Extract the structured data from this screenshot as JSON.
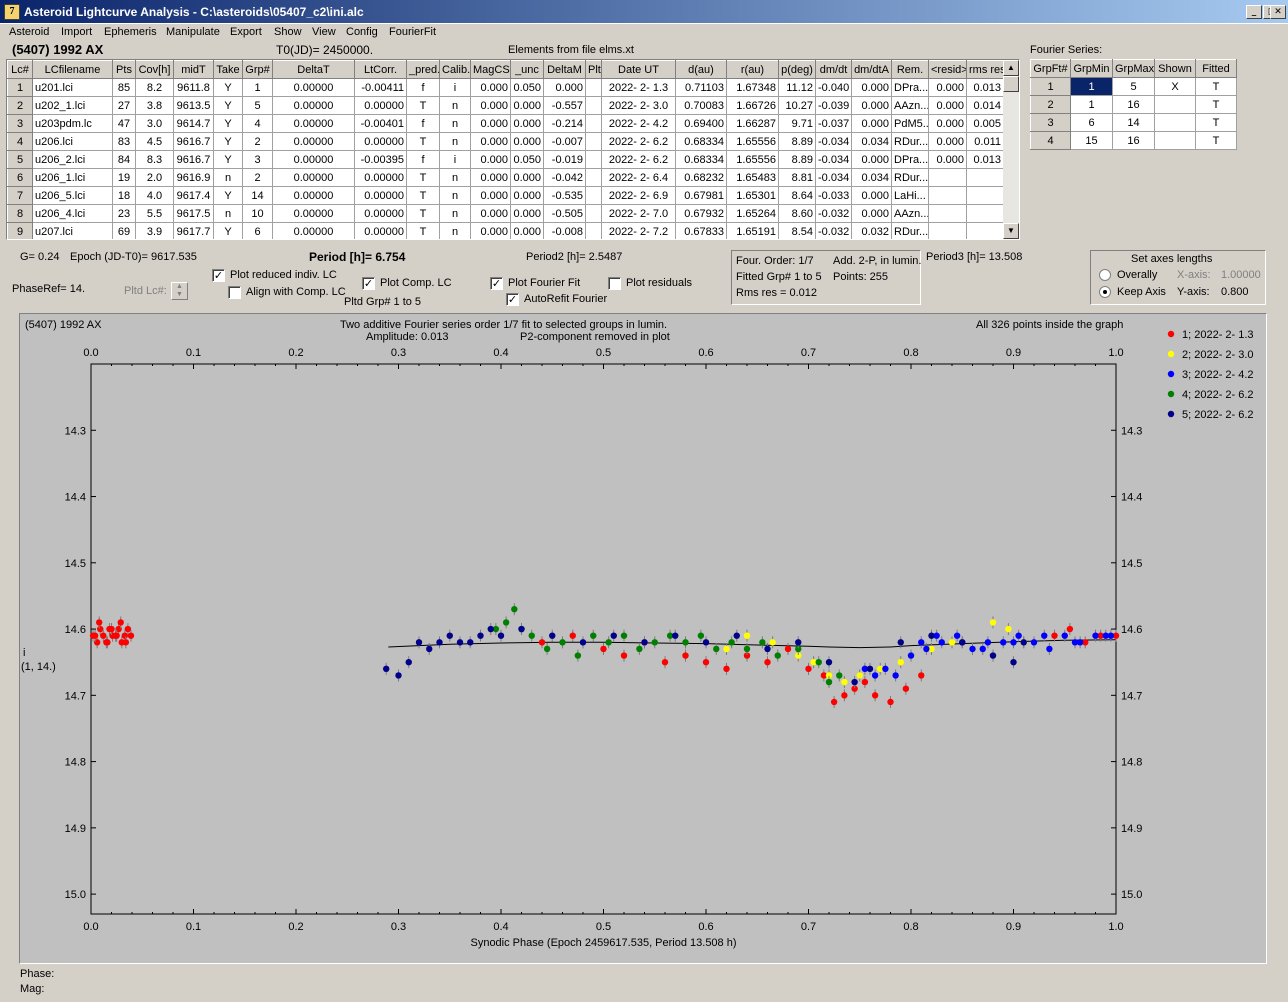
{
  "window": {
    "title": "Asteroid Lightcurve Analysis - C:\\asteroids\\05407_c2\\ini.alc",
    "icon_letter": "7"
  },
  "menu": [
    "Asteroid",
    "Import",
    "Ephemeris",
    "Manipulate",
    "Export",
    "Show",
    "View",
    "Config",
    "FourierFit"
  ],
  "header": {
    "object": "(5407) 1992 AX",
    "t0": "T0(JD)= 2450000.",
    "elements": "Elements from file elms.xt",
    "fourier_series_label": "Fourier Series:"
  },
  "lc_table": {
    "columns": [
      "Lc#",
      "LCfilename",
      "Pts",
      "Cov[h]",
      "midT",
      "Take",
      "Grp#",
      "DeltaT",
      "LtCorr.",
      "_pred.",
      "Calib.",
      "MagCS",
      "_unc",
      "DeltaM",
      "Plt",
      "Date UT",
      "d(au)",
      "r(au)",
      "p(deg)",
      "dm/dt",
      "dm/dtA",
      "Rem.",
      "<resid>",
      "rms res"
    ],
    "rows": [
      [
        "1",
        "u201.lci",
        "85",
        "8.2",
        "9611.8",
        "Y",
        "1",
        "0.00000",
        "-0.00411",
        "f",
        "i",
        "0.000",
        "0.050",
        "0.000",
        "",
        "2022- 2- 1.3",
        "0.71103",
        "1.67348",
        "11.12",
        "-0.040",
        "0.000",
        "DPra...",
        "0.000",
        "0.013"
      ],
      [
        "2",
        "u202_1.lci",
        "27",
        "3.8",
        "9613.5",
        "Y",
        "5",
        "0.00000",
        "0.00000",
        "T",
        "n",
        "0.000",
        "0.000",
        "-0.557",
        "",
        "2022- 2- 3.0",
        "0.70083",
        "1.66726",
        "10.27",
        "-0.039",
        "0.000",
        "AAzn...",
        "0.000",
        "0.014"
      ],
      [
        "3",
        "u203pdm.lc",
        "47",
        "3.0",
        "9614.7",
        "Y",
        "4",
        "0.00000",
        "-0.00401",
        "f",
        "n",
        "0.000",
        "0.000",
        "-0.214",
        "",
        "2022- 2- 4.2",
        "0.69400",
        "1.66287",
        "9.71",
        "-0.037",
        "0.000",
        "PdM5...",
        "0.000",
        "0.005"
      ],
      [
        "4",
        "u206.lci",
        "83",
        "4.5",
        "9616.7",
        "Y",
        "2",
        "0.00000",
        "0.00000",
        "T",
        "n",
        "0.000",
        "0.000",
        "-0.007",
        "",
        "2022- 2- 6.2",
        "0.68334",
        "1.65556",
        "8.89",
        "-0.034",
        "0.034",
        "RDur...",
        "0.000",
        "0.011"
      ],
      [
        "5",
        "u206_2.lci",
        "84",
        "8.3",
        "9616.7",
        "Y",
        "3",
        "0.00000",
        "-0.00395",
        "f",
        "i",
        "0.000",
        "0.050",
        "-0.019",
        "",
        "2022- 2- 6.2",
        "0.68334",
        "1.65556",
        "8.89",
        "-0.034",
        "0.000",
        "DPra...",
        "0.000",
        "0.013"
      ],
      [
        "6",
        "u206_1.lci",
        "19",
        "2.0",
        "9616.9",
        "n",
        "2",
        "0.00000",
        "0.00000",
        "T",
        "n",
        "0.000",
        "0.000",
        "-0.042",
        "",
        "2022- 2- 6.4",
        "0.68232",
        "1.65483",
        "8.81",
        "-0.034",
        "0.034",
        "RDur...",
        "",
        ""
      ],
      [
        "7",
        "u206_5.lci",
        "18",
        "4.0",
        "9617.4",
        "Y",
        "14",
        "0.00000",
        "0.00000",
        "T",
        "n",
        "0.000",
        "0.000",
        "-0.535",
        "",
        "2022- 2- 6.9",
        "0.67981",
        "1.65301",
        "8.64",
        "-0.033",
        "0.000",
        "LaHi...",
        "",
        ""
      ],
      [
        "8",
        "u206_4.lci",
        "23",
        "5.5",
        "9617.5",
        "n",
        "10",
        "0.00000",
        "0.00000",
        "T",
        "n",
        "0.000",
        "0.000",
        "-0.505",
        "",
        "2022- 2- 7.0",
        "0.67932",
        "1.65264",
        "8.60",
        "-0.032",
        "0.000",
        "AAzn...",
        "",
        ""
      ],
      [
        "9",
        "u207.lci",
        "69",
        "3.9",
        "9617.7",
        "Y",
        "6",
        "0.00000",
        "0.00000",
        "T",
        "n",
        "0.000",
        "0.000",
        "-0.008",
        "",
        "2022- 2- 7.2",
        "0.67833",
        "1.65191",
        "8.54",
        "-0.032",
        "0.032",
        "RDur...",
        "",
        ""
      ]
    ]
  },
  "fourier_table": {
    "columns": [
      "GrpFt#",
      "GrpMin",
      "GrpMax",
      "Shown",
      "Fitted"
    ],
    "rows": [
      [
        "1",
        "1",
        "5",
        "X",
        "T"
      ],
      [
        "2",
        "1",
        "16",
        "",
        "T"
      ],
      [
        "3",
        "6",
        "14",
        "",
        "T"
      ],
      [
        "4",
        "15",
        "16",
        "",
        "T"
      ]
    ]
  },
  "params": {
    "g": "G= 0.24",
    "epoch": "Epoch (JD-T0)= 9617.535",
    "period": "Period [h]= 6.754",
    "period2": "Period2 [h]= 2.5487",
    "period3": "Period3 [h]= 13.508",
    "phaseref": "PhaseRef= 14.",
    "pltd_lc": "Pltd Lc#:",
    "pltd_grp": "Pltd Grp#  1   to   5"
  },
  "checks": {
    "plot_reduced": {
      "label": "Plot reduced indiv. LC",
      "checked": true
    },
    "align_comp": {
      "label": "Align with Comp. LC",
      "checked": false
    },
    "plot_comp": {
      "label": "Plot Comp. LC",
      "checked": true
    },
    "plot_fourier": {
      "label": "Plot Fourier Fit",
      "checked": true
    },
    "autorefit": {
      "label": "AutoRefit Fourier",
      "checked": true
    },
    "plot_residuals": {
      "label": "Plot residuals",
      "checked": false
    }
  },
  "fourier_info": {
    "order": "Four. Order:  1/7",
    "add": "Add. 2-P, in lumin.",
    "fitted": "Fitted Grp# 1 to 5",
    "points": "Points: 255",
    "rms": "Rms res     = 0.012"
  },
  "axes_box": {
    "title": "Set axes lengths",
    "overally": "Overally",
    "keep_axis": "Keep Axis",
    "x_axis_label": "X-axis:",
    "x_axis_value": "1.00000",
    "y_axis_label": "Y-axis:",
    "y_axis_value": "0.800",
    "selected": "Keep Axis"
  },
  "plot": {
    "object": "(5407) 1992 AX",
    "subtitle1": "Two additive Fourier series order 1/7 fit to selected groups in lumin.",
    "subtitle2": "Amplitude: 0.013",
    "subtitle3": "P2-component removed in plot",
    "points_note": "All 326 points inside the graph",
    "y_side_label": "i",
    "y_side_label2": "(1, 14.)",
    "xlabel": "Synodic Phase (Epoch 2459617.535, Period 13.508 h)",
    "background": "#c0c0c0",
    "fit_color": "#000000"
  },
  "status": {
    "phase": "Phase:",
    "mag": "Mag:"
  },
  "chart_data": {
    "type": "scatter",
    "xlabel": "Synodic Phase (Epoch 2459617.535, Period 13.508 h)",
    "ylabel": "",
    "xlim": [
      0.0,
      1.0
    ],
    "ylim": [
      14.2,
      15.03
    ],
    "y_inverted": true,
    "x_ticks": [
      0.0,
      0.1,
      0.2,
      0.3,
      0.4,
      0.5,
      0.6,
      0.7,
      0.8,
      0.9,
      1.0
    ],
    "x_tick_labels": [
      "0.0",
      "0.1",
      "0.2",
      "0.3",
      "0.4",
      "0.5",
      "0.6",
      "0.7",
      "0.8",
      "0.9",
      "1.0"
    ],
    "y_ticks": [
      14.3,
      14.4,
      14.5,
      14.6,
      14.7,
      14.8,
      14.9,
      15.0
    ],
    "y_tick_labels": [
      "14.3",
      "14.4",
      "14.5",
      "14.6",
      "14.7",
      "14.8",
      "14.9",
      "15.0"
    ],
    "legend": "top-right",
    "series": [
      {
        "name": "1; 2022- 2- 1.3",
        "color": "#ff0000",
        "x": [
          0.002,
          0.006,
          0.009,
          0.012,
          0.015,
          0.018,
          0.021,
          0.024,
          0.027,
          0.03,
          0.033,
          0.036,
          0.039,
          0.008,
          0.016,
          0.025,
          0.034,
          0.004,
          0.02,
          0.029,
          0.44,
          0.47,
          0.5,
          0.52,
          0.54,
          0.56,
          0.58,
          0.6,
          0.62,
          0.64,
          0.66,
          0.68,
          0.7,
          0.715,
          0.725,
          0.735,
          0.745,
          0.755,
          0.765,
          0.78,
          0.795,
          0.81,
          0.94,
          0.955,
          0.97,
          0.985,
          1.0
        ],
        "y": [
          14.61,
          14.62,
          14.6,
          14.61,
          14.62,
          14.6,
          14.61,
          14.61,
          14.6,
          14.62,
          14.61,
          14.6,
          14.61,
          14.59,
          14.62,
          14.61,
          14.62,
          14.61,
          14.6,
          14.59,
          14.62,
          14.61,
          14.63,
          14.64,
          14.62,
          14.65,
          14.64,
          14.65,
          14.66,
          14.64,
          14.65,
          14.63,
          14.66,
          14.67,
          14.71,
          14.7,
          14.69,
          14.68,
          14.7,
          14.71,
          14.69,
          14.67,
          14.61,
          14.6,
          14.62,
          14.61,
          14.61
        ]
      },
      {
        "name": "2; 2022- 2- 3.0",
        "color": "#ffff00",
        "x": [
          0.62,
          0.64,
          0.665,
          0.69,
          0.705,
          0.72,
          0.735,
          0.75,
          0.77,
          0.79,
          0.82,
          0.84,
          0.86,
          0.88,
          0.895,
          0.91
        ],
        "y": [
          14.63,
          14.61,
          14.62,
          14.64,
          14.65,
          14.67,
          14.68,
          14.67,
          14.66,
          14.65,
          14.63,
          14.62,
          14.63,
          14.59,
          14.6,
          14.62
        ]
      },
      {
        "name": "3; 2022- 2- 4.2",
        "color": "#0000ff",
        "x": [
          0.755,
          0.765,
          0.775,
          0.785,
          0.8,
          0.815,
          0.83,
          0.845,
          0.86,
          0.875,
          0.89,
          0.905,
          0.92,
          0.935,
          0.95,
          0.965,
          0.98,
          0.995,
          0.81,
          0.825,
          0.85,
          0.87,
          0.9,
          0.93,
          0.96,
          0.99
        ],
        "y": [
          14.66,
          14.67,
          14.66,
          14.67,
          14.64,
          14.63,
          14.62,
          14.61,
          14.63,
          14.62,
          14.62,
          14.61,
          14.62,
          14.63,
          14.61,
          14.62,
          14.61,
          14.61,
          14.62,
          14.61,
          14.62,
          14.63,
          14.62,
          14.61,
          14.62,
          14.61
        ]
      },
      {
        "name": "4; 2022- 2- 6.2",
        "color": "#008000",
        "x": [
          0.395,
          0.405,
          0.413,
          0.42,
          0.43,
          0.445,
          0.46,
          0.475,
          0.49,
          0.505,
          0.52,
          0.535,
          0.55,
          0.565,
          0.58,
          0.595,
          0.61,
          0.625,
          0.64,
          0.655,
          0.67,
          0.69,
          0.71,
          0.72,
          0.73
        ],
        "y": [
          14.6,
          14.59,
          14.57,
          14.6,
          14.61,
          14.63,
          14.62,
          14.64,
          14.61,
          14.62,
          14.61,
          14.63,
          14.62,
          14.61,
          14.62,
          14.61,
          14.63,
          14.62,
          14.63,
          14.62,
          14.64,
          14.63,
          14.65,
          14.68,
          14.67
        ]
      },
      {
        "name": "5; 2022- 2- 6.2",
        "color": "#00008b",
        "x": [
          0.288,
          0.3,
          0.31,
          0.32,
          0.33,
          0.34,
          0.35,
          0.36,
          0.37,
          0.38,
          0.39,
          0.4,
          0.42,
          0.45,
          0.48,
          0.51,
          0.54,
          0.57,
          0.6,
          0.63,
          0.66,
          0.69,
          0.72,
          0.745,
          0.76,
          0.79,
          0.82,
          0.85,
          0.88,
          0.9,
          0.91
        ],
        "y": [
          14.66,
          14.67,
          14.65,
          14.62,
          14.63,
          14.62,
          14.61,
          14.62,
          14.62,
          14.61,
          14.6,
          14.61,
          14.6,
          14.61,
          14.62,
          14.61,
          14.62,
          14.61,
          14.62,
          14.61,
          14.63,
          14.62,
          14.65,
          14.68,
          14.66,
          14.62,
          14.61,
          14.62,
          14.64,
          14.65,
          14.62
        ]
      }
    ],
    "fit_line": {
      "x": [
        0.29,
        0.35,
        0.4,
        0.45,
        0.5,
        0.55,
        0.6,
        0.65,
        0.7,
        0.72,
        0.75,
        0.78,
        0.8,
        0.85,
        0.9,
        0.95,
        1.0
      ],
      "y": [
        14.627,
        14.623,
        14.621,
        14.62,
        14.62,
        14.621,
        14.622,
        14.624,
        14.626,
        14.627,
        14.628,
        14.627,
        14.625,
        14.622,
        14.619,
        14.617,
        14.616
      ]
    }
  }
}
